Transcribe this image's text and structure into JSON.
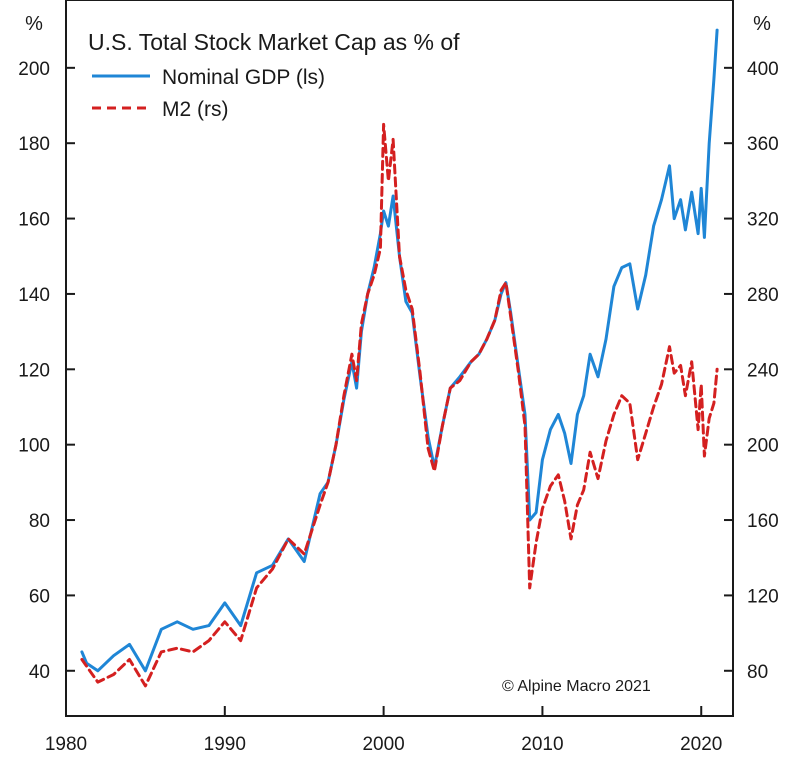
{
  "chart_data": {
    "type": "line",
    "title": "U.S. Total Stock Market Cap as % of",
    "left_unit": "%",
    "right_unit": "%",
    "credit": "© Alpine Macro 2021",
    "xlim": [
      1980,
      2022
    ],
    "x_ticks": [
      1980,
      1990,
      2000,
      2010,
      2020
    ],
    "x_tick_labels": [
      "1980",
      "1990",
      "2000",
      "2010",
      "2020"
    ],
    "ylim_left": [
      28,
      218
    ],
    "y_ticks_left": [
      40,
      60,
      80,
      100,
      120,
      140,
      160,
      180,
      200
    ],
    "y_tick_labels_left": [
      "40",
      "60",
      "80",
      "100",
      "120",
      "140",
      "160",
      "180",
      "200"
    ],
    "ylim_right": [
      56,
      436
    ],
    "y_ticks_right": [
      80,
      120,
      160,
      200,
      240,
      280,
      320,
      360,
      400
    ],
    "y_tick_labels_right": [
      "80",
      "120",
      "160",
      "200",
      "240",
      "280",
      "320",
      "360",
      "400"
    ],
    "colors": {
      "gdp": "#1f86d6",
      "m2": "#d42020"
    },
    "series": [
      {
        "name": "Nominal GDP (ls)",
        "axis": "left",
        "style": "solid",
        "x": [
          1981,
          1981.3,
          1982,
          1983,
          1984,
          1985,
          1986,
          1987,
          1988,
          1989,
          1990,
          1991,
          1992,
          1993,
          1994,
          1995,
          1996,
          1996.5,
          1997,
          1997.5,
          1998,
          1998.3,
          1998.6,
          1999,
          1999.4,
          1999.8,
          2000,
          2000.3,
          2000.6,
          2001,
          2001.4,
          2001.8,
          2002.3,
          2002.8,
          2003.2,
          2003.7,
          2004.2,
          2004.8,
          2005.5,
          2006,
          2006.5,
          2007,
          2007.4,
          2007.7,
          2008,
          2008.5,
          2008.9,
          2009.2,
          2009.6,
          2010,
          2010.5,
          2011,
          2011.4,
          2011.8,
          2012.2,
          2012.6,
          2013,
          2013.5,
          2014,
          2014.5,
          2015,
          2015.5,
          2016,
          2016.5,
          2017,
          2017.5,
          2018,
          2018.3,
          2018.7,
          2019,
          2019.4,
          2019.8,
          2020,
          2020.2,
          2020.5,
          2020.8,
          2021
        ],
        "values": [
          45,
          42,
          40,
          44,
          47,
          40,
          51,
          53,
          51,
          52,
          58,
          52,
          66,
          68,
          75,
          69,
          87,
          90,
          100,
          112,
          122,
          115,
          130,
          140,
          147,
          156,
          162,
          158,
          166,
          150,
          138,
          135,
          118,
          102,
          94,
          105,
          115,
          118,
          122,
          124,
          128,
          133,
          140,
          143,
          135,
          120,
          108,
          80,
          82,
          96,
          104,
          108,
          103,
          95,
          108,
          113,
          124,
          118,
          128,
          142,
          147,
          148,
          136,
          145,
          158,
          165,
          174,
          160,
          165,
          157,
          167,
          156,
          168,
          155,
          180,
          197,
          210
        ]
      },
      {
        "name": "M2 (rs)",
        "axis": "right",
        "style": "dashed",
        "x": [
          1981,
          1981.5,
          1982,
          1983,
          1984,
          1985,
          1986,
          1987,
          1988,
          1989,
          1990,
          1991,
          1992,
          1993,
          1994,
          1995,
          1996,
          1996.5,
          1997,
          1997.5,
          1998,
          1998.3,
          1998.6,
          1999,
          1999.4,
          1999.8,
          2000,
          2000.3,
          2000.6,
          2001,
          2001.4,
          2001.8,
          2002.3,
          2002.8,
          2003.2,
          2003.7,
          2004.2,
          2004.8,
          2005.5,
          2006,
          2006.5,
          2007,
          2007.4,
          2007.7,
          2008,
          2008.5,
          2008.9,
          2009.2,
          2009.6,
          2010,
          2010.5,
          2011,
          2011.4,
          2011.8,
          2012.2,
          2012.6,
          2013,
          2013.5,
          2014,
          2014.5,
          2015,
          2015.5,
          2016,
          2016.5,
          2017,
          2017.5,
          2018,
          2018.3,
          2018.7,
          2019,
          2019.4,
          2019.8,
          2020,
          2020.2,
          2020.5,
          2020.8,
          2021
        ],
        "values": [
          86,
          80,
          74,
          78,
          86,
          72,
          90,
          92,
          90,
          96,
          106,
          96,
          124,
          134,
          150,
          142,
          168,
          180,
          200,
          226,
          248,
          234,
          264,
          280,
          290,
          304,
          370,
          340,
          362,
          300,
          282,
          272,
          238,
          198,
          186,
          210,
          230,
          234,
          244,
          248,
          256,
          266,
          282,
          286,
          268,
          238,
          210,
          124,
          148,
          166,
          178,
          184,
          170,
          150,
          168,
          176,
          196,
          182,
          202,
          216,
          226,
          222,
          192,
          206,
          220,
          232,
          252,
          238,
          242,
          226,
          244,
          208,
          232,
          194,
          214,
          222,
          240
        ]
      }
    ]
  }
}
